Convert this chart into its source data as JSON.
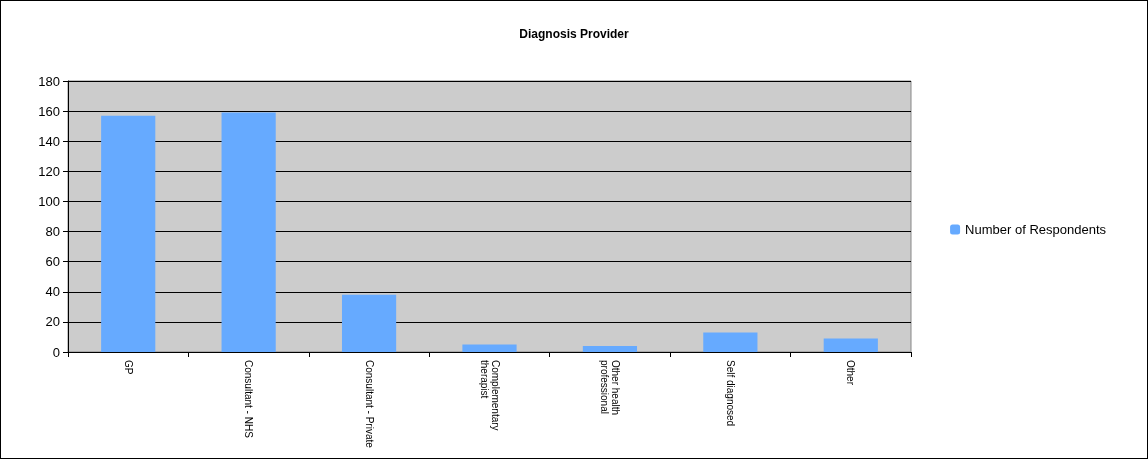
{
  "chart_data": {
    "type": "bar",
    "title": "Diagnosis Provider",
    "categories": [
      "GP",
      "Consultant - NHS",
      "Consultant - Private",
      "Complementary therapist",
      "Other health professional",
      "Self diagnosed",
      "Other"
    ],
    "series": [
      {
        "name": "Number of Respondents",
        "color": "#66aaff",
        "values": [
          157,
          159,
          38,
          5,
          4,
          13,
          9
        ]
      }
    ],
    "ylim": [
      0,
      180
    ],
    "yticks": [
      0,
      20,
      40,
      60,
      80,
      100,
      120,
      140,
      160,
      180
    ],
    "grid": "y",
    "legend": "right"
  }
}
